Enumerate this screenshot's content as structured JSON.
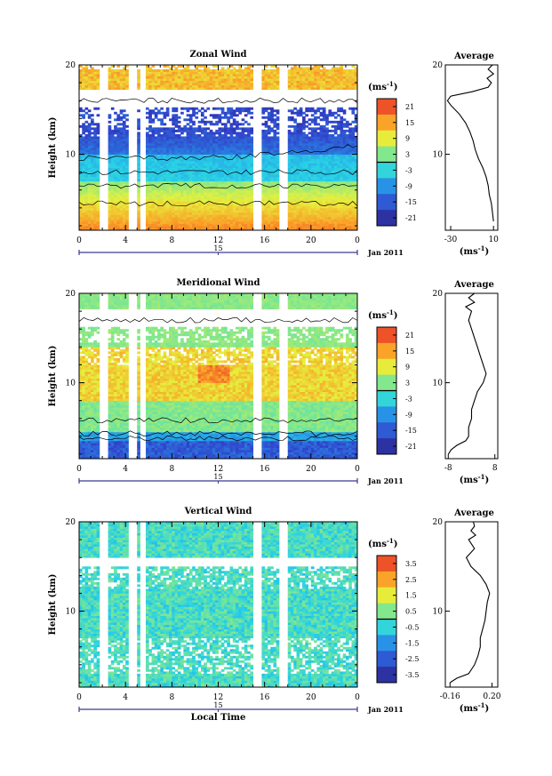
{
  "chart_data": [
    {
      "type": "heatmap",
      "title": "Zonal Wind",
      "ylabel": "Height (km)",
      "xlabel": "",
      "x_ticks": [
        "0",
        "4",
        "8",
        "12",
        "16",
        "20",
        "0"
      ],
      "y_ticks": [
        "20",
        "10"
      ],
      "date_tick": "15",
      "date_label": "Jan 2011",
      "xlim": [
        0,
        24
      ],
      "ylim": [
        1.5,
        20
      ],
      "colorbar": {
        "unit": "(ms",
        "exp": "-1",
        "unit_close": ")",
        "ticks": [
          "21",
          "15",
          "9",
          "3",
          "-3",
          "-9",
          "-15",
          "-21"
        ],
        "range": [
          -24,
          24
        ]
      },
      "profile": {
        "title": "Average",
        "x_ticks": [
          "-30",
          "10"
        ],
        "xlim": [
          -35,
          14
        ],
        "y_ticks": [
          "20",
          "10"
        ],
        "xlabel": "(ms",
        "exp": "-1",
        "xlabel_close": ")",
        "h": [
          2.5,
          3.5,
          4.5,
          5.5,
          6.5,
          7.5,
          8.5,
          9.5,
          10.5,
          11.5,
          12.5,
          13.5,
          14.5,
          15.5,
          16.0,
          16.5,
          17.0,
          17.5,
          18.0,
          18.5,
          19.0,
          19.5,
          20.0
        ],
        "v": [
          10,
          9,
          8,
          6,
          5,
          3,
          0,
          -4,
          -7,
          -9,
          -12,
          -16,
          -22,
          -30,
          -33,
          -30,
          -10,
          5,
          8,
          4,
          10,
          5,
          9
        ]
      },
      "gaps": [
        2.2,
        4.6,
        5.5,
        15.3,
        17.6
      ]
    },
    {
      "type": "heatmap",
      "title": "Meridional Wind",
      "ylabel": "Height (km)",
      "xlabel": "",
      "x_ticks": [
        "0",
        "4",
        "8",
        "12",
        "16",
        "20",
        "0"
      ],
      "y_ticks": [
        "20",
        "10"
      ],
      "date_tick": "15",
      "date_label": "Jan 2011",
      "xlim": [
        0,
        24
      ],
      "ylim": [
        1.5,
        20
      ],
      "colorbar": {
        "unit": "(ms",
        "exp": "-1",
        "unit_close": ")",
        "ticks": [
          "21",
          "15",
          "9",
          "3",
          "-3",
          "-9",
          "-15",
          "-21"
        ],
        "range": [
          -24,
          24
        ]
      },
      "profile": {
        "title": "Average",
        "x_ticks": [
          "-8",
          "8"
        ],
        "xlim": [
          -9,
          9
        ],
        "y_ticks": [
          "20",
          "10"
        ],
        "xlabel": "(ms",
        "exp": "-1",
        "xlabel_close": ")",
        "h": [
          2.0,
          2.5,
          3.0,
          3.5,
          4.0,
          5.0,
          6.0,
          7.0,
          8.0,
          9.0,
          10.0,
          11.0,
          12.0,
          13.0,
          14.0,
          15.0,
          16.0,
          17.0,
          18.0,
          18.5,
          19.0,
          19.5,
          20.0
        ],
        "v": [
          -8,
          -7,
          -5,
          -2,
          -1,
          -1,
          0,
          0,
          1,
          2,
          4,
          5,
          4,
          3,
          2,
          1,
          0,
          -1,
          0,
          -2,
          1,
          -1,
          1
        ]
      },
      "gaps": [
        2.2,
        4.6,
        5.5,
        15.3,
        17.6
      ]
    },
    {
      "type": "heatmap",
      "title": "Vertical Wind",
      "ylabel": "Height (km)",
      "xlabel": "Local Time",
      "x_ticks": [
        "0",
        "4",
        "8",
        "12",
        "16",
        "20",
        "0"
      ],
      "y_ticks": [
        "20",
        "10"
      ],
      "date_tick": "15",
      "date_label": "Jan 2011",
      "xlim": [
        0,
        24
      ],
      "ylim": [
        1.5,
        20
      ],
      "colorbar": {
        "unit": "(ms",
        "exp": "-1",
        "unit_close": ")",
        "ticks": [
          "3.5",
          "2.5",
          "1.5",
          "0.5",
          "-0.5",
          "-1.5",
          "-2.5",
          "-3.5"
        ],
        "range": [
          -4,
          4
        ]
      },
      "profile": {
        "title": "Average",
        "x_ticks": [
          "-0.16",
          "0.20"
        ],
        "xlim": [
          -0.2,
          0.25
        ],
        "y_ticks": [
          "20",
          "10"
        ],
        "xlabel": "(ms",
        "exp": "-1",
        "xlabel_close": ")",
        "h": [
          2.0,
          2.5,
          3.0,
          4.0,
          5.0,
          6.0,
          7.0,
          8.0,
          9.0,
          10.0,
          11.0,
          12.0,
          13.0,
          14.0,
          15.0,
          16.0,
          17.0,
          18.0,
          18.5,
          19.0,
          19.5,
          20.0
        ],
        "v": [
          -0.16,
          -0.1,
          0.0,
          0.05,
          0.08,
          0.1,
          0.1,
          0.12,
          0.14,
          0.15,
          0.16,
          0.18,
          0.15,
          0.1,
          0.02,
          -0.02,
          0.05,
          0.0,
          0.06,
          0.02,
          0.05,
          0.04
        ]
      },
      "gaps": [
        2.2,
        4.6,
        5.5,
        15.3,
        17.6
      ]
    }
  ]
}
